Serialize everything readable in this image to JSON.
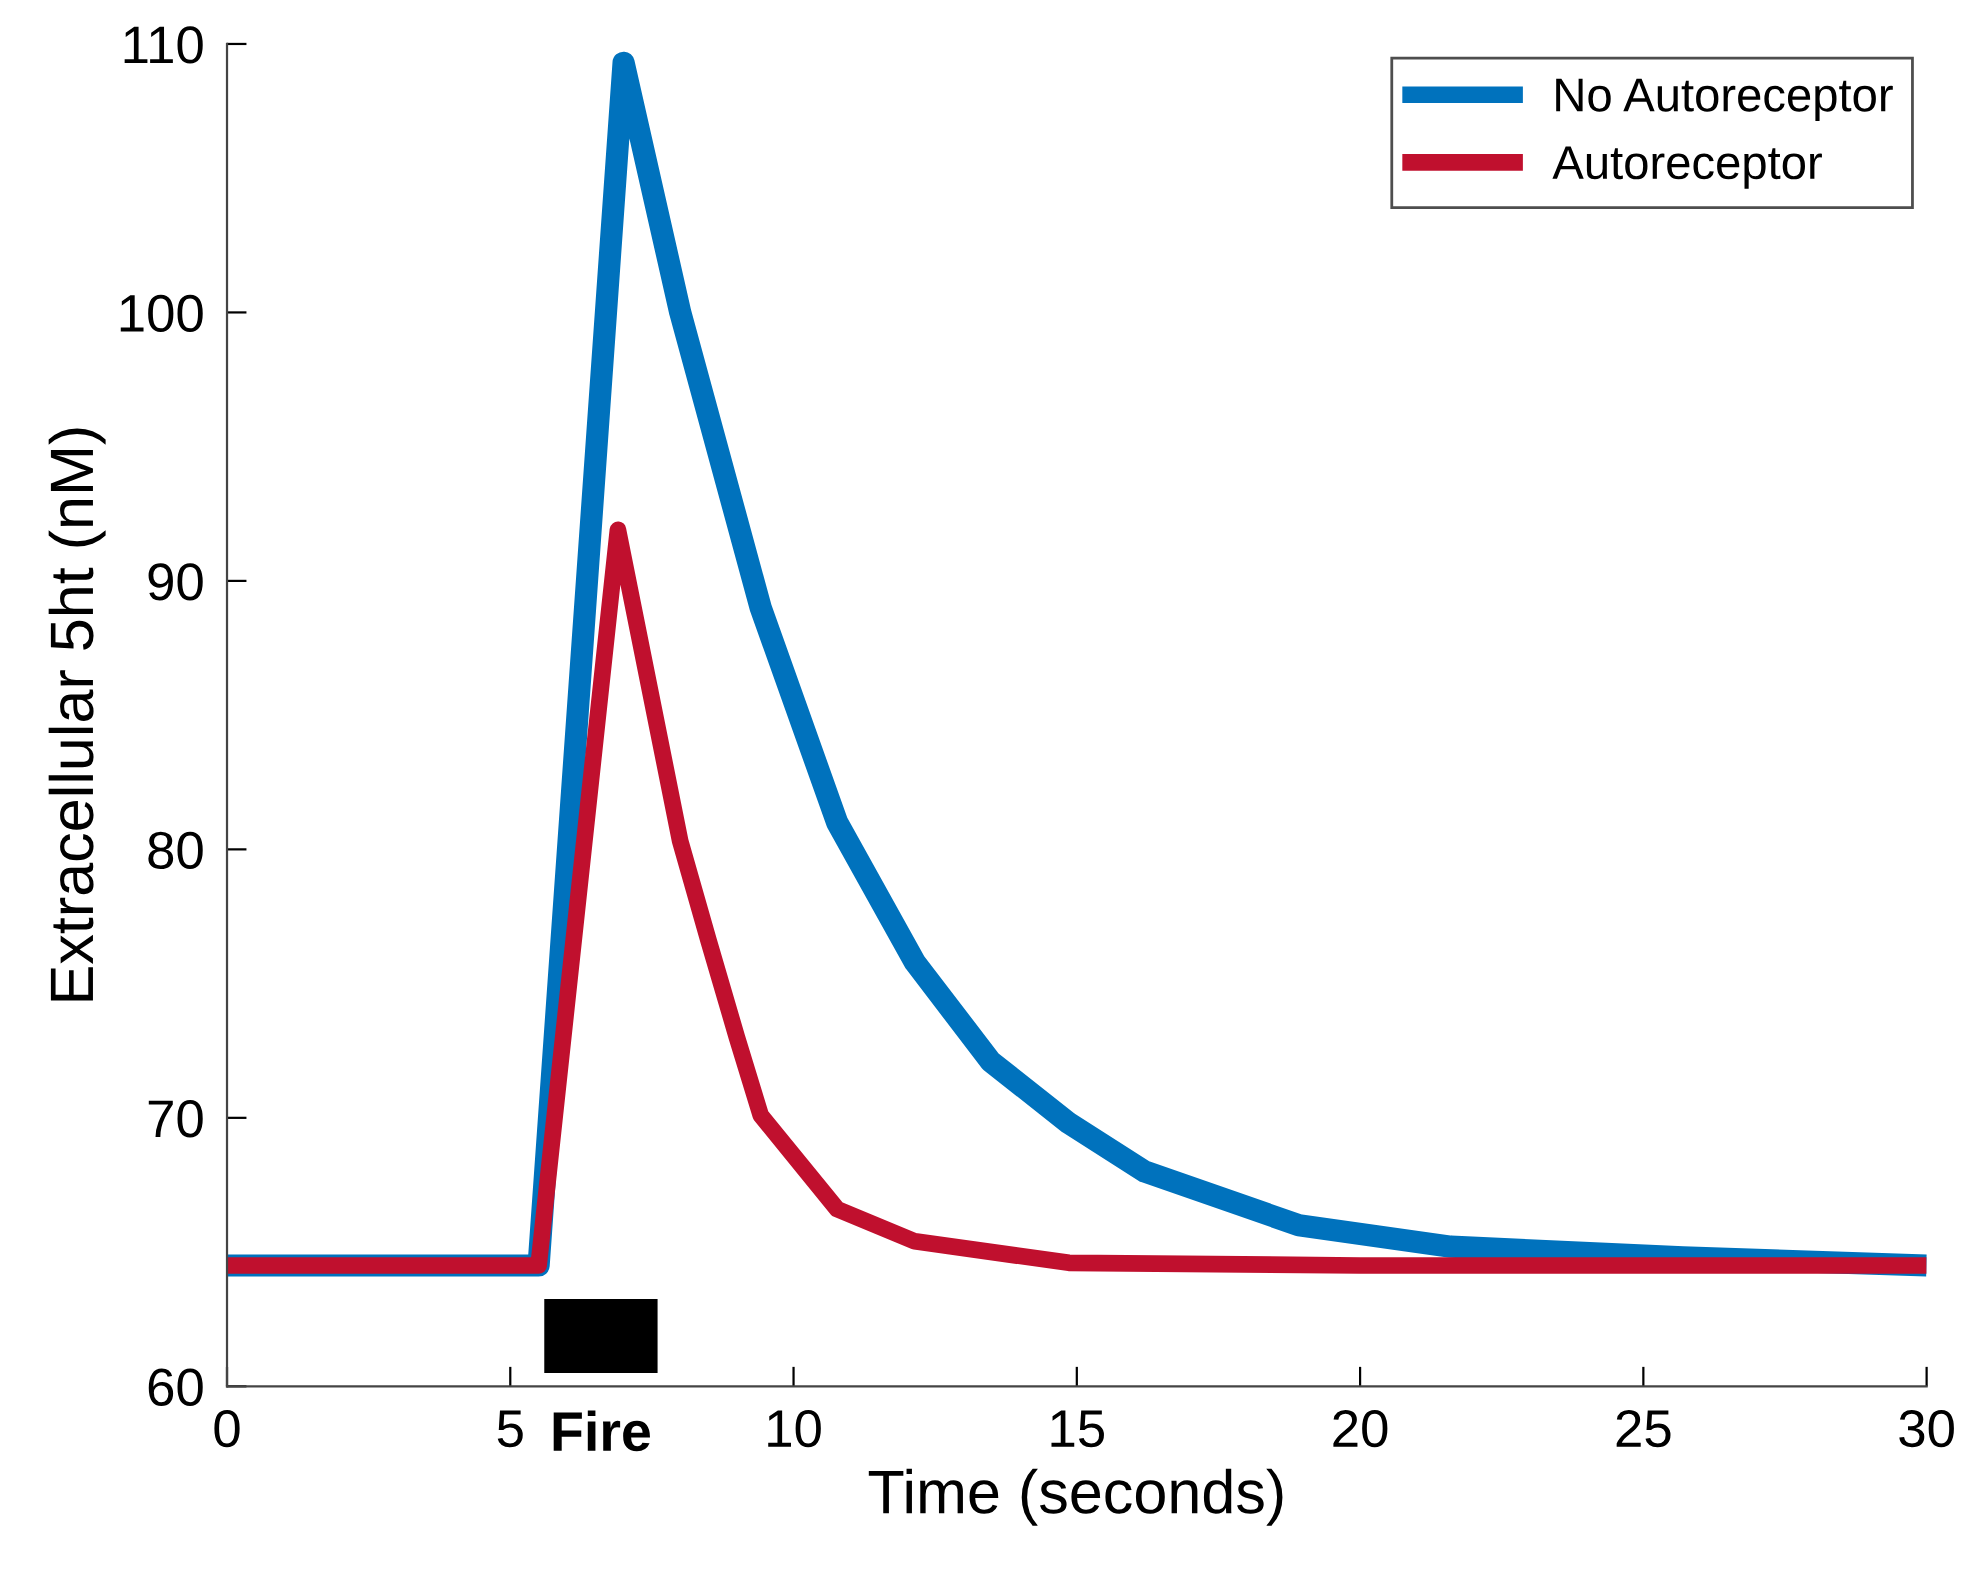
{
  "chart_data": {
    "type": "line",
    "xlabel": "Time (seconds)",
    "ylabel": "Extracellular 5ht (nM)",
    "xlim": [
      0,
      30
    ],
    "ylim": [
      60,
      110
    ],
    "xticks": [
      0,
      5,
      10,
      15,
      20,
      25,
      30
    ],
    "yticks": [
      60,
      70,
      80,
      90,
      100,
      110
    ],
    "grid": false,
    "legend": "top right",
    "line_style": "solid",
    "marker": "none",
    "series": [
      {
        "name": "No Autoreceptor",
        "color": "#0072bd",
        "x": [
          0,
          5.5,
          7.0,
          8.0,
          9.42,
          10.77,
          12.14,
          13.48,
          14.86,
          16.2,
          18.92,
          21.6,
          25.7,
          30
        ],
        "values": [
          64.5,
          64.5,
          109.3,
          100,
          89.0,
          81.0,
          75.8,
          72.1,
          69.8,
          68.0,
          66.0,
          65.2,
          64.8,
          64.5
        ]
      },
      {
        "name": "Autoreceptor",
        "color": "#c0102e",
        "x": [
          0,
          5.5,
          6.9,
          8.0,
          8.5,
          9.0,
          9.42,
          10.77,
          12.14,
          14.86,
          20,
          30
        ],
        "values": [
          64.5,
          64.5,
          91.9,
          80.3,
          76.6,
          73.0,
          70.1,
          66.6,
          65.4,
          64.6,
          64.5,
          64.5
        ]
      }
    ],
    "bands": [
      {
        "axis": "x",
        "from": 5.6,
        "to": 7.6,
        "label": "Fire",
        "color": "#000000"
      }
    ]
  }
}
